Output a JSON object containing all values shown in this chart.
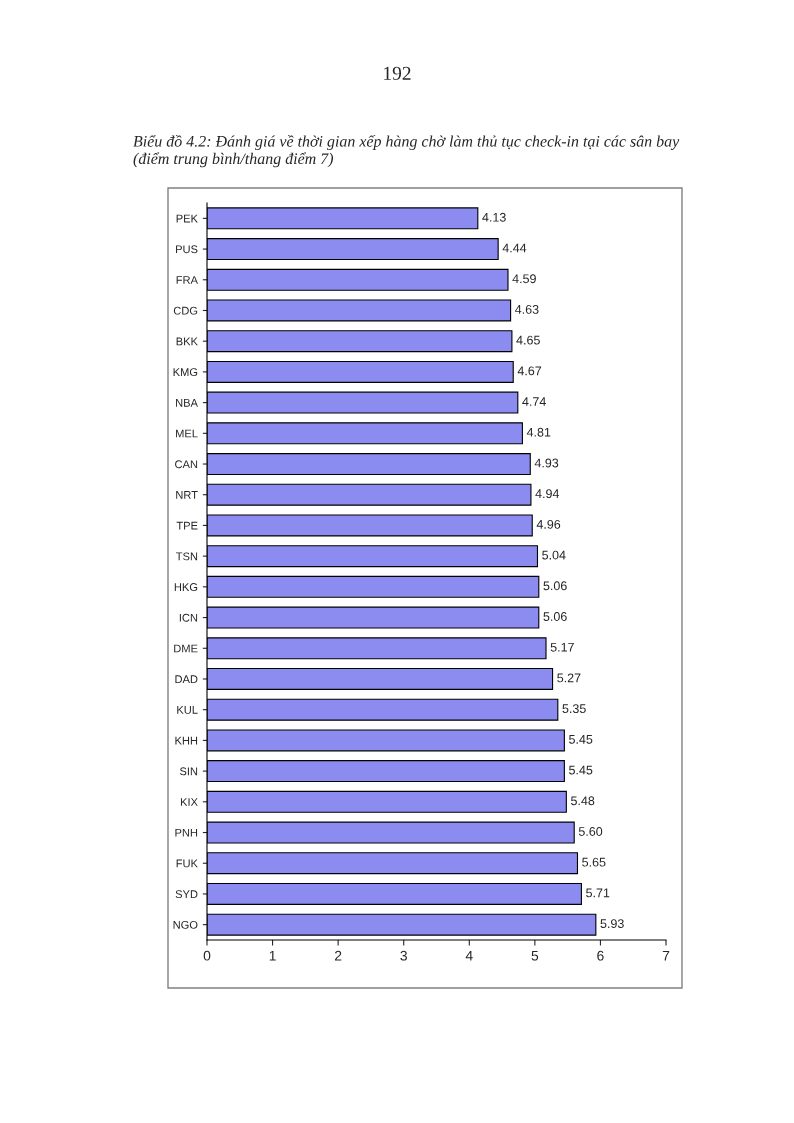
{
  "chart_data": {
    "type": "bar",
    "orientation": "horizontal",
    "title": "Biểu đồ 4.2: Đánh giá về thời gian xếp hàng chờ làm thủ tục check-in tại các sân bay\n(điểm trung bình/thang điểm 7)",
    "annotations": [
      "192"
    ],
    "categories": [
      "PEK",
      "PUS",
      "FRA",
      "CDG",
      "BKK",
      "KMG",
      "NBA",
      "MEL",
      "CAN",
      "NRT",
      "TPE",
      "TSN",
      "HKG",
      "ICN",
      "DME",
      "DAD",
      "KUL",
      "KHH",
      "SIN",
      "KIX",
      "PNH",
      "FUK",
      "SYD",
      "NGO"
    ],
    "values": [
      4.13,
      4.44,
      4.59,
      4.63,
      4.65,
      4.67,
      4.74,
      4.81,
      4.93,
      4.94,
      4.96,
      5.04,
      5.06,
      5.06,
      5.17,
      5.27,
      5.35,
      5.45,
      5.45,
      5.48,
      5.6,
      5.65,
      5.71,
      5.93
    ],
    "value_labels": [
      "4.13",
      "4.44",
      "4.59",
      "4.63",
      "4.65",
      "4.67",
      "4.74",
      "4.81",
      "4.93",
      "4.94",
      "4.96",
      "5.04",
      "5.06",
      "5.06",
      "5.17",
      "5.27",
      "5.35",
      "5.45",
      "5.45",
      "5.48",
      "5.60",
      "5.65",
      "5.71",
      "5.93"
    ],
    "color": "#8c8cf0",
    "xlim": [
      0,
      7
    ],
    "xticks": [
      0,
      1,
      2,
      3,
      4,
      5,
      6,
      7
    ],
    "grid": false,
    "legend": false
  }
}
